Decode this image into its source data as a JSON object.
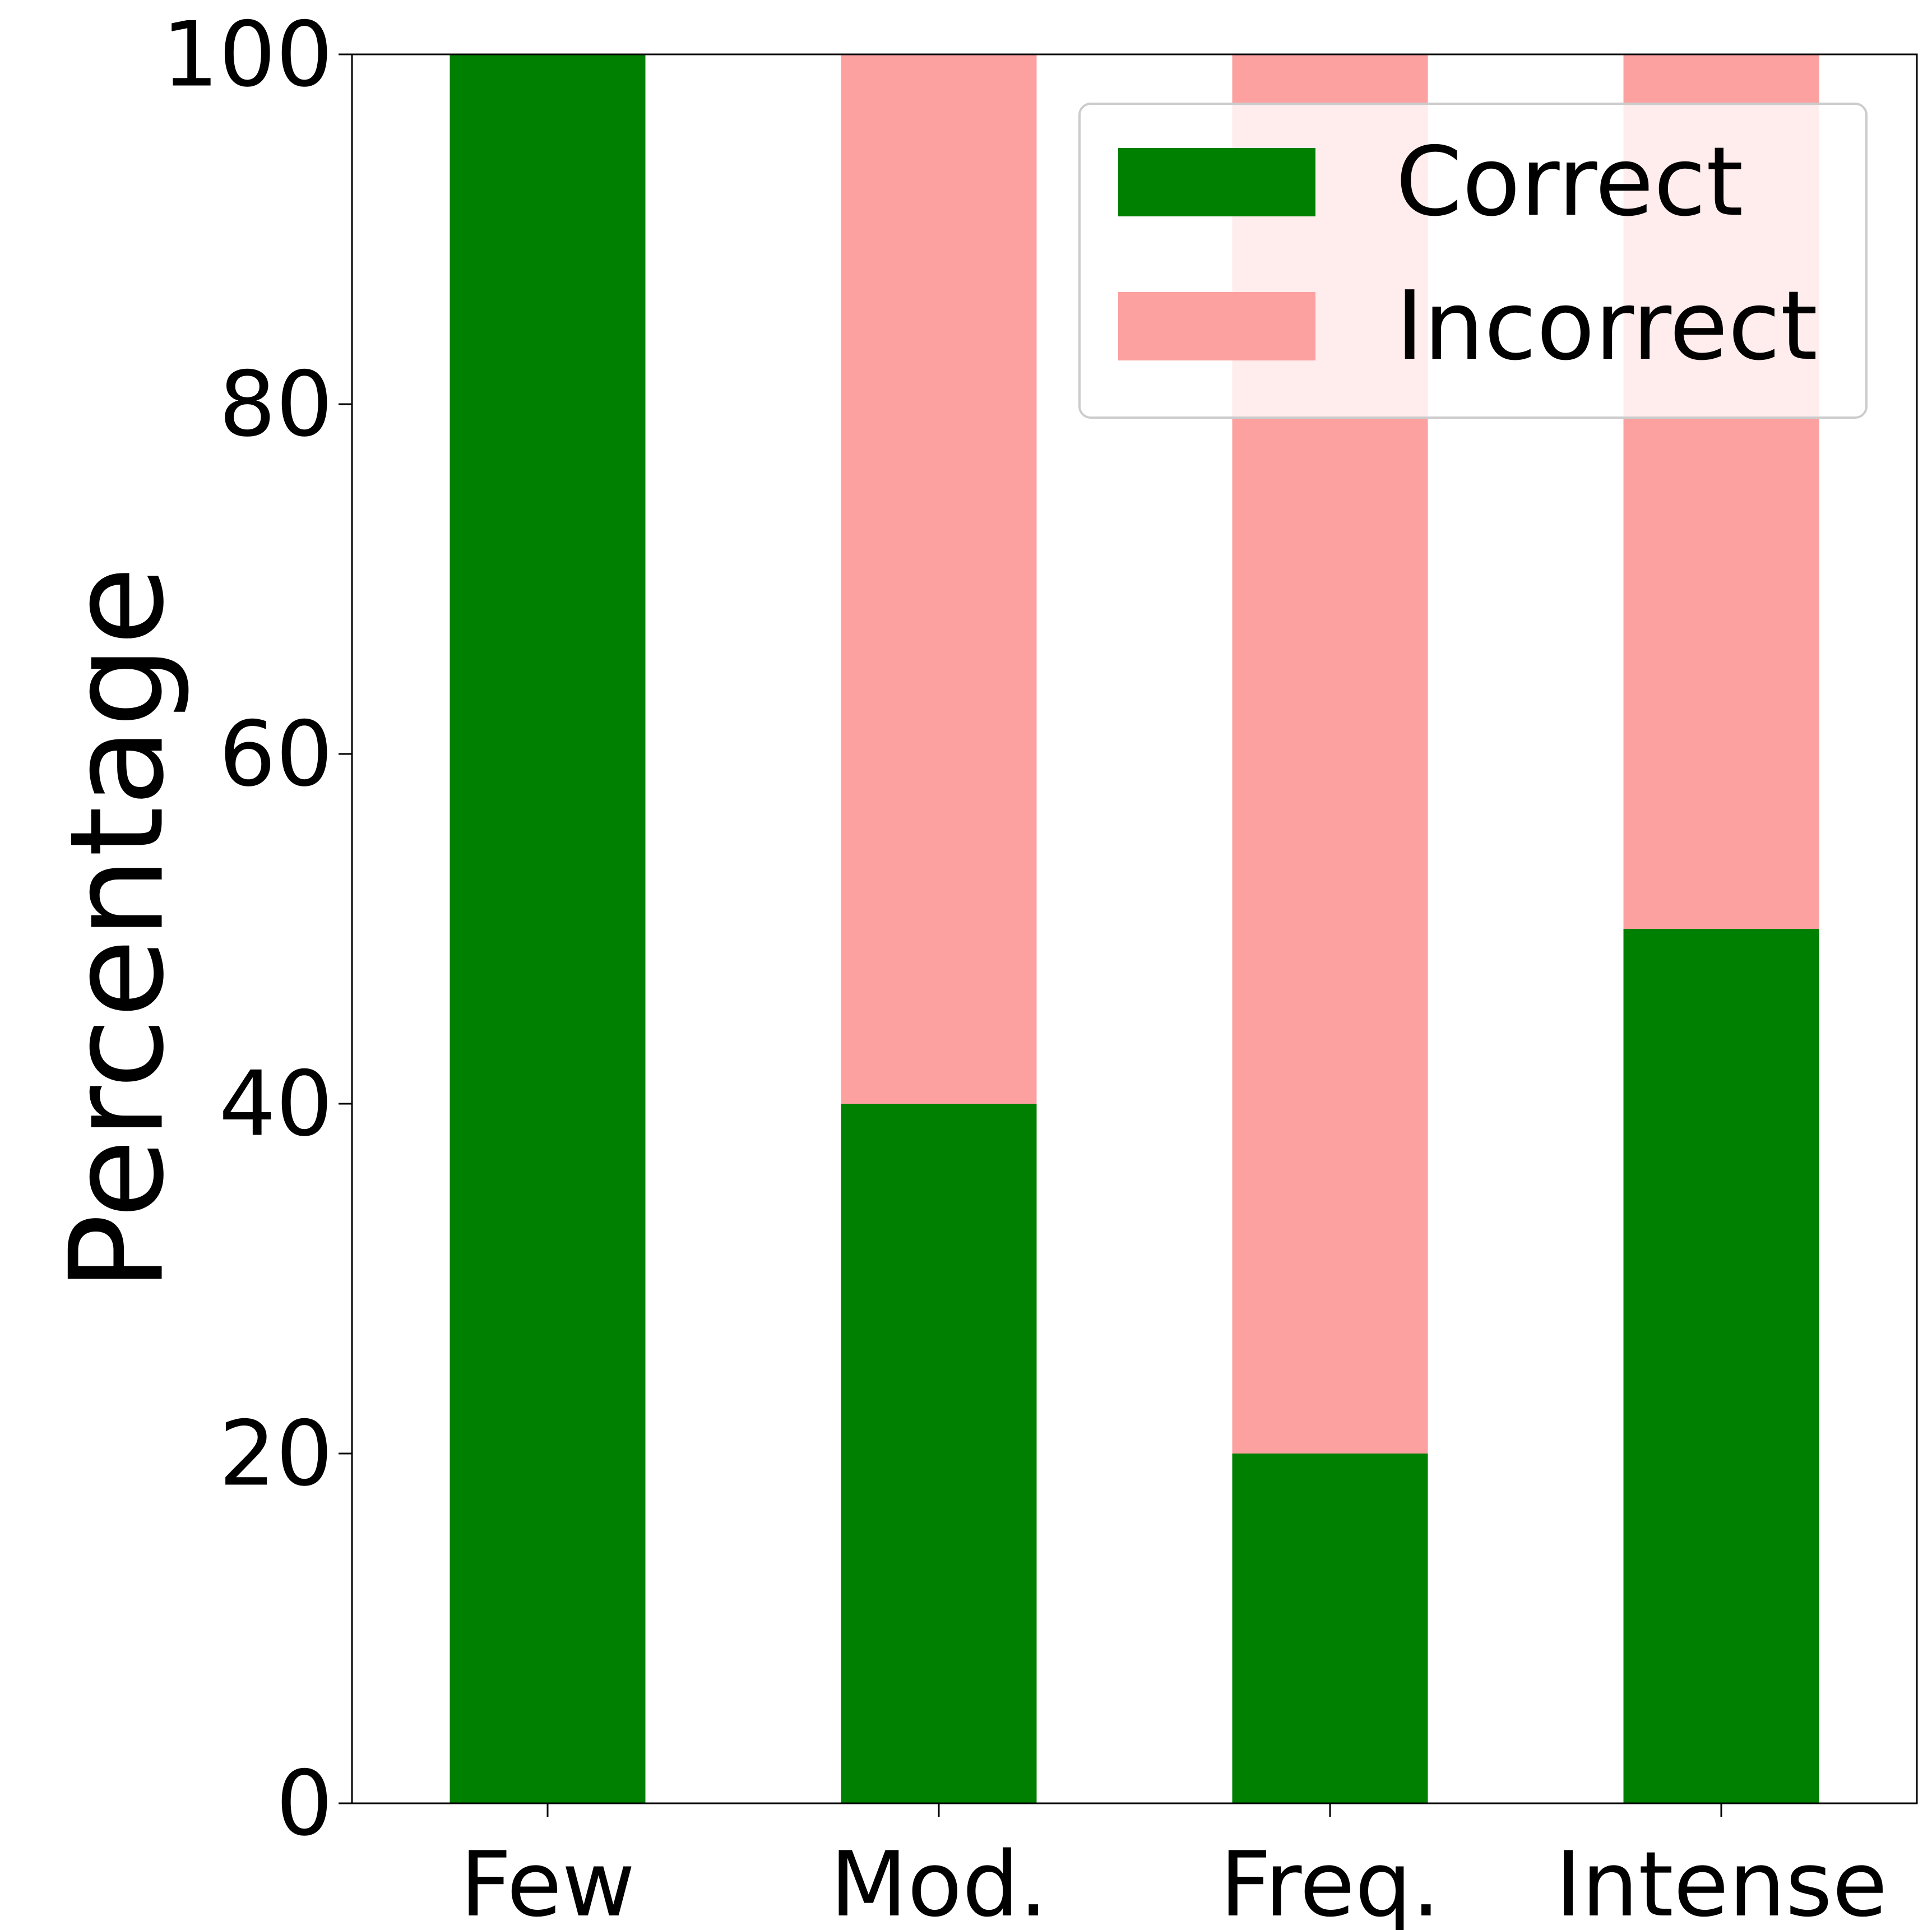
{
  "chart_data": {
    "type": "bar",
    "stacked": true,
    "categories": [
      "Few",
      "Mod.",
      "Freq.",
      "Intense"
    ],
    "series": [
      {
        "name": "Correct",
        "values": [
          100,
          40,
          20,
          50
        ],
        "color": "#008000"
      },
      {
        "name": "Incorrect",
        "values": [
          0,
          60,
          80,
          50
        ],
        "color": "#fca0a0"
      }
    ],
    "title": "",
    "xlabel": "",
    "ylabel": "Percentage",
    "ylim": [
      0,
      100
    ],
    "yticks": [
      "0",
      "20",
      "40",
      "60",
      "80",
      "100"
    ],
    "grid": false,
    "legend_position": "top-right"
  }
}
